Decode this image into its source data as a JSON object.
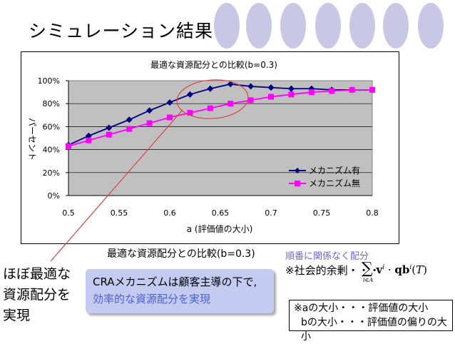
{
  "slide_title": "シミュレーション結果",
  "chart_data": {
    "type": "line",
    "title": "最適な資源配分との比較(b=0.3)",
    "xlabel": "a (評価値の大小)",
    "ylabel": "パーセント",
    "x": [
      0.5,
      0.52,
      0.54,
      0.56,
      0.58,
      0.6,
      0.62,
      0.64,
      0.66,
      0.68,
      0.7,
      0.72,
      0.74,
      0.76,
      0.78,
      0.8
    ],
    "xlim": [
      0.5,
      0.8
    ],
    "ylim": [
      0,
      100
    ],
    "x_ticks": [
      "0.5",
      "0.55",
      "0.6",
      "0.65",
      "0.7",
      "0.75",
      "0.8"
    ],
    "y_ticks": [
      "0%",
      "20%",
      "40%",
      "60%",
      "80%",
      "100%"
    ],
    "series": [
      {
        "name": "メカニズム有",
        "color": "#000080",
        "marker": "diamond",
        "values": [
          44,
          52,
          59,
          66,
          74,
          81,
          88,
          93,
          97,
          95,
          94,
          93,
          93,
          92,
          92,
          92
        ]
      },
      {
        "name": "メカニズム無",
        "color": "#ff00ff",
        "marker": "square",
        "values": [
          43,
          48,
          53,
          58,
          63,
          68,
          72,
          76,
          80,
          83,
          86,
          88,
          90,
          91,
          92,
          92
        ]
      }
    ],
    "grid": true,
    "legend_position": "lower-right",
    "plot_background": "#c0c0c0"
  },
  "caption": "最適な資源配分との比較(b=0.3)",
  "blue_note": "順番に関係なく配分",
  "formula_label": "※社会的余剰・・・",
  "left_text": [
    "ほぼ最適な",
    "資源配分を",
    "実現"
  ],
  "callout": {
    "line1": "CRAメカニズムは顧客主導の下で,",
    "line2": "効率的な資源配分を実現"
  },
  "note_box": {
    "line1": "※aの大小・・・評価値の大小",
    "line2": "bの大小・・・評価値の偏りの大小"
  },
  "colors": {
    "decor_circle": "#c9c7e6",
    "highlight": "#e04040",
    "callout_bg": "#c3cbf0",
    "callout_text": "#4d61d9"
  }
}
